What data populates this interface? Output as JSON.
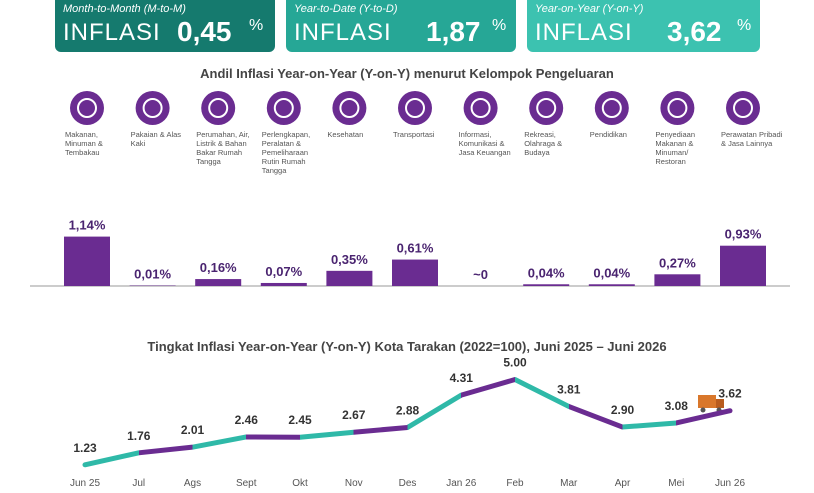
{
  "header": {
    "boxes": [
      {
        "label": "Month-to-Month (M-to-M)",
        "word": "INFLASI",
        "value": "0,45",
        "unit": "%"
      },
      {
        "label": "Year-to-Date (Y-to-D)",
        "word": "INFLASI",
        "value": "1,87",
        "unit": "%"
      },
      {
        "label": "Year-on-Year (Y-on-Y)",
        "word": "INFLASI",
        "value": "3,62",
        "unit": "%"
      }
    ]
  },
  "chart_data": [
    {
      "type": "bar",
      "title": "Andil Inflasi Year-on-Year (Y-on-Y) menurut Kelompok Pengeluaran",
      "categories": [
        "Makanan, Minuman & Tembakau",
        "Pakaian & Alas Kaki",
        "Perumahan, Air, Listrik & Bahan Bakar Rumah Tangga",
        "Perlengkapan, Peralatan & Pemeliharaan Rutin Rumah Tangga",
        "Kesehatan",
        "Transportasi",
        "Informasi, Komunikasi & Jasa Keuangan",
        "Rekreasi, Olahraga & Budaya",
        "Pendidikan",
        "Penyediaan Makanan & Minuman/ Restoran",
        "Perawatan Pribadi & Jasa Lainnya"
      ],
      "values": [
        1.14,
        0.01,
        0.16,
        0.07,
        0.35,
        0.61,
        0,
        0.04,
        0.04,
        0.27,
        0.93
      ],
      "value_labels": [
        "1,14%",
        "0,01%",
        "0,16%",
        "0,07%",
        "0,35%",
        "0,61%",
        "~0",
        "0,04%",
        "0,04%",
        "0,27%",
        "0,93%"
      ],
      "color": "#6a2c91",
      "ylim": [
        0,
        1.2
      ]
    },
    {
      "type": "line",
      "title": "Tingkat Inflasi Year-on-Year (Y-on-Y) Kota Tarakan (2022=100), Juni 2025 – Juni 2026",
      "categories": [
        "Jun 25",
        "Jul",
        "Ags",
        "Sept",
        "Okt",
        "Nov",
        "Des",
        "Jan 26",
        "Feb",
        "Mar",
        "Apr",
        "Mei",
        "Jun 26"
      ],
      "values": [
        1.23,
        1.76,
        2.01,
        2.46,
        2.45,
        2.67,
        2.88,
        4.31,
        5.0,
        3.81,
        2.9,
        3.08,
        3.62
      ],
      "value_labels": [
        "1.23",
        "1.76",
        "2.01",
        "2.46",
        "2.45",
        "2.67",
        "2.88",
        "4.31",
        "5.00",
        "3.81",
        "2.90",
        "3.08",
        "3.62"
      ],
      "colors": [
        "#2fb9a8",
        "#6a2c91"
      ],
      "ylim": [
        1,
        5.2
      ]
    }
  ]
}
